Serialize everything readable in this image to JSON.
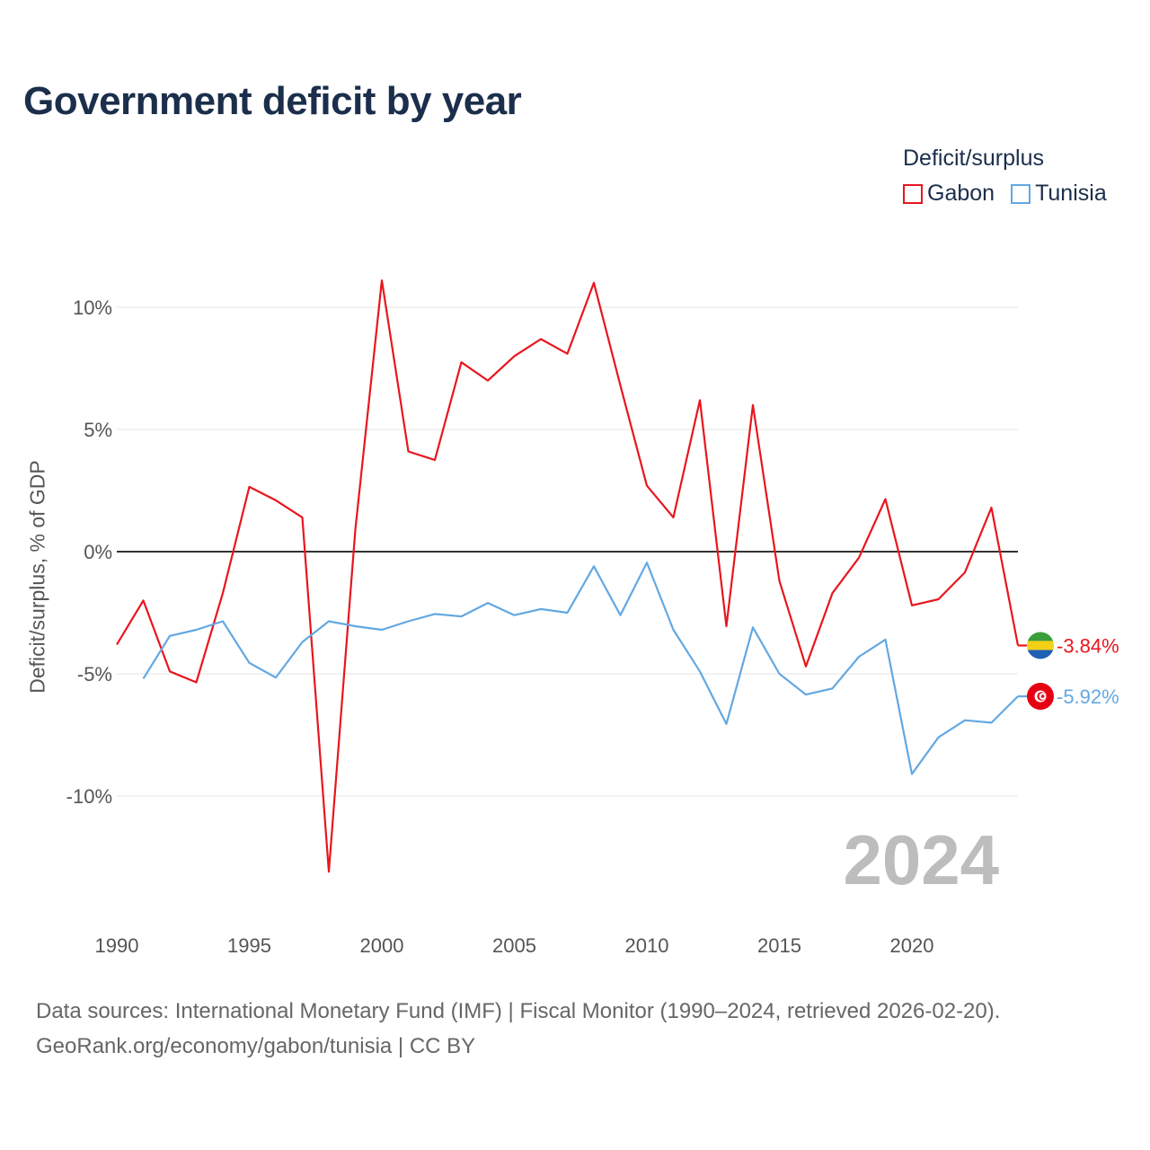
{
  "chart_data": {
    "type": "line",
    "title": "Government deficit by year",
    "ylabel": "Deficit/surplus, % of GDP",
    "xlabel": "",
    "legend_title": "Deficit/surplus",
    "legend_position": "top-right",
    "x_ticks": [
      "1990",
      "1995",
      "2000",
      "2005",
      "2010",
      "2015",
      "2020"
    ],
    "x_tick_values": [
      1990,
      1995,
      2000,
      2005,
      2010,
      2015,
      2020
    ],
    "y_ticks": [
      "10%",
      "5%",
      "0%",
      "-5%",
      "-10%"
    ],
    "y_tick_values": [
      10,
      5,
      0,
      -5,
      -10
    ],
    "xlim": [
      1990,
      2024
    ],
    "ylim": [
      -14,
      12
    ],
    "current_year": "2024",
    "series": [
      {
        "name": "Gabon",
        "color": "#e8161d",
        "end_label": "-3.84%",
        "x": [
          1990,
          1991,
          1992,
          1993,
          1994,
          1995,
          1996,
          1997,
          1998,
          1999,
          2000,
          2001,
          2002,
          2003,
          2004,
          2005,
          2006,
          2007,
          2008,
          2009,
          2010,
          2011,
          2012,
          2013,
          2014,
          2015,
          2016,
          2017,
          2018,
          2019,
          2020,
          2021,
          2022,
          2023,
          2024
        ],
        "values": [
          -3.8,
          -2.0,
          -4.9,
          -5.35,
          -1.7,
          2.65,
          2.1,
          1.4,
          -13.1,
          0.9,
          11.1,
          4.1,
          3.75,
          7.75,
          7.0,
          8.0,
          8.7,
          8.1,
          11.0,
          6.8,
          2.7,
          1.4,
          6.2,
          -3.05,
          6.0,
          -1.2,
          -4.7,
          -1.7,
          -0.25,
          2.15,
          -2.2,
          -1.95,
          -0.85,
          1.8,
          -3.84
        ]
      },
      {
        "name": "Tunisia",
        "color": "#63a8e2",
        "end_label": "-5.92%",
        "x": [
          1991,
          1992,
          1993,
          1994,
          1995,
          1996,
          1997,
          1998,
          1999,
          2000,
          2001,
          2002,
          2003,
          2004,
          2005,
          2006,
          2007,
          2008,
          2009,
          2010,
          2011,
          2012,
          2013,
          2014,
          2015,
          2016,
          2017,
          2018,
          2019,
          2020,
          2021,
          2022,
          2023,
          2024
        ],
        "values": [
          -5.2,
          -3.45,
          -3.2,
          -2.85,
          -4.55,
          -5.15,
          -3.7,
          -2.85,
          -3.05,
          -3.2,
          -2.85,
          -2.55,
          -2.65,
          -2.1,
          -2.6,
          -2.35,
          -2.5,
          -0.6,
          -2.6,
          -0.45,
          -3.2,
          -4.9,
          -7.05,
          -3.1,
          -5.0,
          -5.85,
          -5.6,
          -4.3,
          -3.6,
          -9.1,
          -7.6,
          -6.9,
          -7.0,
          -5.92
        ]
      }
    ]
  },
  "footer": {
    "line1": "Data sources: International Monetary Fund (IMF) | Fiscal Monitor (1990–2024, retrieved 2026-02-20).",
    "line2": "GeoRank.org/economy/gabon/tunisia | CC BY"
  },
  "colors": {
    "title": "#1b2e4b",
    "grid": "#e6e6e6",
    "zero_line": "#333333",
    "gabon_flag": [
      "#3a9e3a",
      "#f5d116",
      "#1f5fb4"
    ],
    "tunisia_flag": "#e70013"
  }
}
